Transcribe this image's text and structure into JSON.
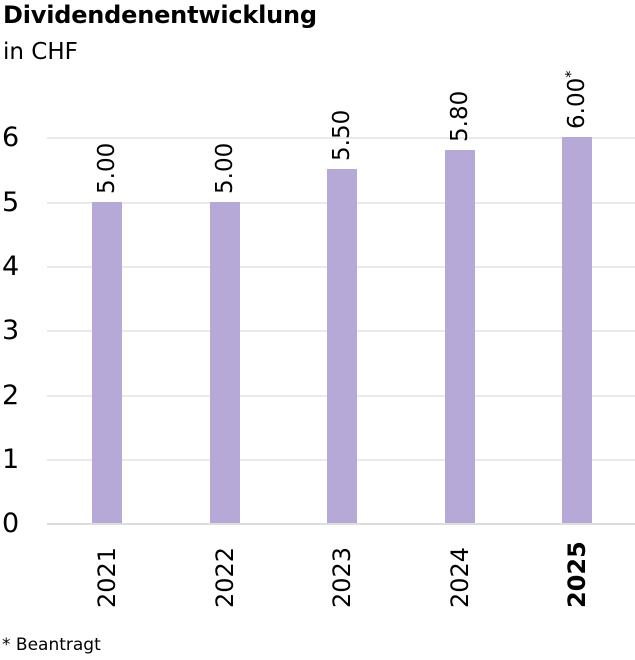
{
  "header": {
    "title": "Dividendenentwicklung",
    "subtitle": "in CHF"
  },
  "footnote": "* Beantragt",
  "colors": {
    "bar": "#b7a9d7",
    "gridline": "#eaeaea",
    "baseline": "#dddddd",
    "text": "#000000"
  },
  "chart_data": {
    "type": "bar",
    "title": "Dividendenentwicklung",
    "unit_label": "in CHF",
    "categories": [
      "2021",
      "2022",
      "2023",
      "2024",
      "2025"
    ],
    "values": [
      5.0,
      5.0,
      5.5,
      5.8,
      6.0
    ],
    "bar_value_labels": [
      "5.00",
      "5.00",
      "5.50",
      "5.80",
      "6.00"
    ],
    "bar_label_suffixes": [
      "",
      "",
      "",
      "",
      "*"
    ],
    "bold_categories": [
      false,
      false,
      false,
      false,
      true
    ],
    "value_label_rotation_deg": -90,
    "category_label_rotation_deg": -90,
    "xlabel": "",
    "ylabel": "",
    "ylim": [
      0,
      6
    ],
    "yticks": [
      "6",
      "5",
      "4",
      "3",
      "2",
      "1",
      "0"
    ],
    "grid": true,
    "legend_position": "none",
    "footnote": "* Beantragt"
  }
}
